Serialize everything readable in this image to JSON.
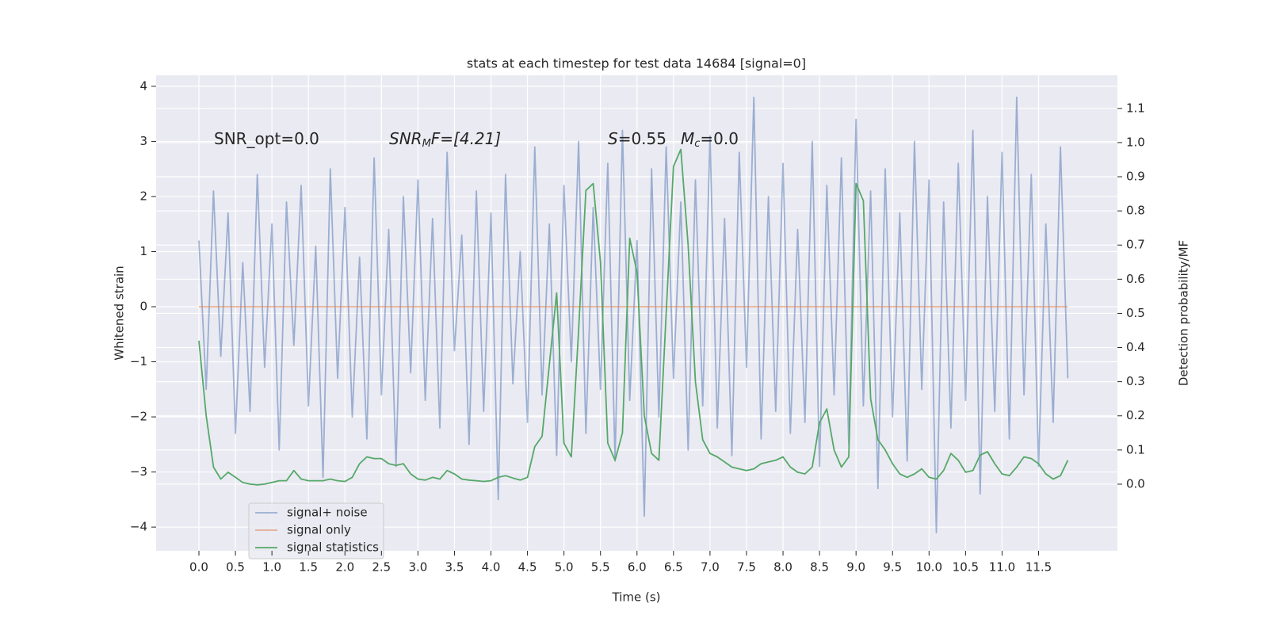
{
  "chart_data": {
    "type": "line",
    "title": "stats at each timestep for test data 14684 [signal=0]",
    "xlabel": "Time (s)",
    "ylabel": "Whitened strain",
    "y2label": "Detection probability/MF",
    "annotations": [
      [
        "SNR_opt=0.0"
      ],
      [
        "SNR",
        "M",
        "F=[4.21]"
      ],
      [
        "S",
        "=0.55"
      ],
      [
        "M",
        "c",
        "=0.0"
      ]
    ],
    "x": [
      0,
      0.1,
      0.2,
      0.3,
      0.4,
      0.5,
      0.6,
      0.7,
      0.8,
      0.9,
      1,
      1.1,
      1.2,
      1.3,
      1.4,
      1.5,
      1.6,
      1.7,
      1.8,
      1.9,
      2,
      2.1,
      2.2,
      2.3,
      2.4,
      2.5,
      2.6,
      2.7,
      2.8,
      2.9,
      3,
      3.1,
      3.2,
      3.3,
      3.4,
      3.5,
      3.6,
      3.7,
      3.8,
      3.9,
      4,
      4.1,
      4.2,
      4.3,
      4.4,
      4.5,
      4.6,
      4.7,
      4.8,
      4.9,
      5,
      5.1,
      5.2,
      5.3,
      5.4,
      5.5,
      5.6,
      5.7,
      5.8,
      5.9,
      6,
      6.1,
      6.2,
      6.3,
      6.4,
      6.5,
      6.6,
      6.7,
      6.8,
      6.9,
      7,
      7.1,
      7.2,
      7.3,
      7.4,
      7.5,
      7.6,
      7.7,
      7.8,
      7.9,
      8,
      8.1,
      8.2,
      8.3,
      8.4,
      8.5,
      8.6,
      8.7,
      8.8,
      8.9,
      9,
      9.1,
      9.2,
      9.3,
      9.4,
      9.5,
      9.6,
      9.7,
      9.8,
      9.9,
      10,
      10.1,
      10.2,
      10.3,
      10.4,
      10.5,
      10.6,
      10.7,
      10.8,
      10.9,
      11,
      11.1,
      11.2,
      11.3,
      11.4,
      11.5,
      11.6,
      11.7,
      11.8,
      11.9
    ],
    "series": [
      {
        "name": "signal+ noise",
        "color": "#4c72b0",
        "alpha": 0.5,
        "axis": "y",
        "values": [
          1.2,
          -1.5,
          2.1,
          -0.9,
          1.7,
          -2.3,
          0.8,
          -1.9,
          2.4,
          -1.1,
          1.5,
          -2.6,
          1.9,
          -0.7,
          2.2,
          -1.8,
          1.1,
          -3.1,
          2.5,
          -1.3,
          1.8,
          -2.0,
          0.9,
          -2.4,
          2.7,
          -1.6,
          1.4,
          -2.9,
          2.0,
          -1.2,
          2.3,
          -1.7,
          1.6,
          -2.2,
          2.8,
          -0.8,
          1.3,
          -2.5,
          2.1,
          -1.9,
          1.7,
          -3.5,
          2.4,
          -1.4,
          1.0,
          -2.1,
          2.9,
          -1.6,
          1.5,
          -2.7,
          2.2,
          -1.0,
          3.0,
          -2.3,
          1.8,
          -1.5,
          2.6,
          -2.8,
          3.2,
          -1.7,
          1.2,
          -3.8,
          2.5,
          -2.0,
          2.9,
          -1.3,
          1.9,
          -2.6,
          2.3,
          -1.8,
          3.1,
          -2.2,
          1.6,
          -2.7,
          2.8,
          -1.1,
          3.8,
          -2.4,
          2.0,
          -1.9,
          2.6,
          -2.3,
          1.4,
          -2.1,
          3.0,
          -2.9,
          2.2,
          -1.6,
          2.7,
          -2.5,
          3.4,
          -1.8,
          2.1,
          -3.3,
          2.5,
          -2.0,
          1.7,
          -2.8,
          3.0,
          -1.5,
          2.3,
          -4.1,
          1.9,
          -2.2,
          2.6,
          -1.7,
          3.2,
          -3.4,
          2.0,
          -1.9,
          2.8,
          -2.4,
          3.8,
          -1.6,
          2.4,
          -2.9,
          1.5,
          -2.1,
          2.9,
          -1.3
        ]
      },
      {
        "name": "signal only",
        "color": "#dd8452",
        "alpha": 0.6,
        "axis": "y",
        "values": [
          0,
          0,
          0,
          0,
          0,
          0,
          0,
          0,
          0,
          0,
          0,
          0,
          0,
          0,
          0,
          0,
          0,
          0,
          0,
          0,
          0,
          0,
          0,
          0,
          0,
          0,
          0,
          0,
          0,
          0,
          0,
          0,
          0,
          0,
          0,
          0,
          0,
          0,
          0,
          0,
          0,
          0,
          0,
          0,
          0,
          0,
          0,
          0,
          0,
          0,
          0,
          0,
          0,
          0,
          0,
          0,
          0,
          0,
          0,
          0,
          0,
          0,
          0,
          0,
          0,
          0,
          0,
          0,
          0,
          0,
          0,
          0,
          0,
          0,
          0,
          0,
          0,
          0,
          0,
          0,
          0,
          0,
          0,
          0,
          0,
          0,
          0,
          0,
          0,
          0,
          0,
          0,
          0,
          0,
          0,
          0,
          0,
          0,
          0,
          0,
          0,
          0,
          0,
          0,
          0,
          0,
          0,
          0,
          0,
          0,
          0,
          0,
          0,
          0,
          0,
          0,
          0,
          0,
          0,
          0
        ]
      },
      {
        "name": "signal statistics",
        "color": "#55a868",
        "alpha": 1,
        "axis": "y2",
        "values": [
          0.42,
          0.2,
          0.05,
          0.015,
          0.035,
          0.02,
          0.005,
          0,
          -0.002,
          0,
          0.005,
          0.01,
          0.01,
          0.04,
          0.015,
          0.01,
          0.01,
          0.01,
          0.015,
          0.01,
          0.008,
          0.02,
          0.06,
          0.08,
          0.075,
          0.075,
          0.06,
          0.055,
          0.06,
          0.03,
          0.015,
          0.012,
          0.02,
          0.015,
          0.04,
          0.03,
          0.015,
          0.012,
          0.01,
          0.008,
          0.01,
          0.02,
          0.025,
          0.018,
          0.012,
          0.02,
          0.11,
          0.14,
          0.35,
          0.56,
          0.12,
          0.08,
          0.45,
          0.86,
          0.88,
          0.65,
          0.12,
          0.07,
          0.15,
          0.72,
          0.62,
          0.2,
          0.09,
          0.07,
          0.5,
          0.93,
          0.98,
          0.7,
          0.3,
          0.13,
          0.09,
          0.08,
          0.065,
          0.05,
          0.045,
          0.04,
          0.045,
          0.06,
          0.065,
          0.07,
          0.08,
          0.05,
          0.035,
          0.03,
          0.05,
          0.18,
          0.22,
          0.1,
          0.05,
          0.08,
          0.88,
          0.83,
          0.25,
          0.13,
          0.1,
          0.06,
          0.03,
          0.02,
          0.03,
          0.045,
          0.02,
          0.015,
          0.04,
          0.09,
          0.07,
          0.035,
          0.04,
          0.085,
          0.095,
          0.06,
          0.03,
          0.025,
          0.05,
          0.08,
          0.075,
          0.06,
          0.03,
          0.015,
          0.025,
          0.07
        ]
      }
    ],
    "xlim": [
      -0.586,
      12.58
    ],
    "xticks": [
      {
        "value": 0,
        "label": "0.0"
      },
      0.5,
      {
        "value": 1,
        "label": "1.0"
      },
      1.5,
      {
        "value": 2,
        "label": "2.0"
      },
      2.5,
      {
        "value": 3,
        "label": "3.0"
      },
      3.5,
      {
        "value": 4,
        "label": "4.0"
      },
      4.5,
      {
        "value": 5,
        "label": "5.0"
      },
      5.5,
      {
        "value": 6,
        "label": "6.0"
      },
      6.5,
      {
        "value": 7,
        "label": "7.0"
      },
      7.5,
      {
        "value": 8,
        "label": "8.0"
      },
      8.5,
      {
        "value": 9,
        "label": "9.0"
      },
      9.5,
      {
        "value": 10,
        "label": "10.0"
      },
      10.5,
      {
        "value": 11,
        "label": "11.0"
      },
      11.5
    ],
    "ylim": [
      -4.43,
      4.2
    ],
    "yticks": [
      {
        "value": -4,
        "label": "−4"
      },
      {
        "value": -3,
        "label": "−3"
      },
      {
        "value": -2,
        "label": "−2"
      },
      {
        "value": -1,
        "label": "−1"
      },
      0,
      1,
      2,
      3,
      4
    ],
    "y2lim": [
      -0.195,
      1.197
    ],
    "y2ticks": [
      {
        "value": 0,
        "label": "0.0"
      },
      0.1,
      0.2,
      0.3,
      0.4,
      0.5,
      0.6,
      0.7,
      0.8,
      0.9,
      {
        "value": 1,
        "label": "1.0"
      },
      1.1
    ],
    "grid": true,
    "legend": "lower left"
  }
}
